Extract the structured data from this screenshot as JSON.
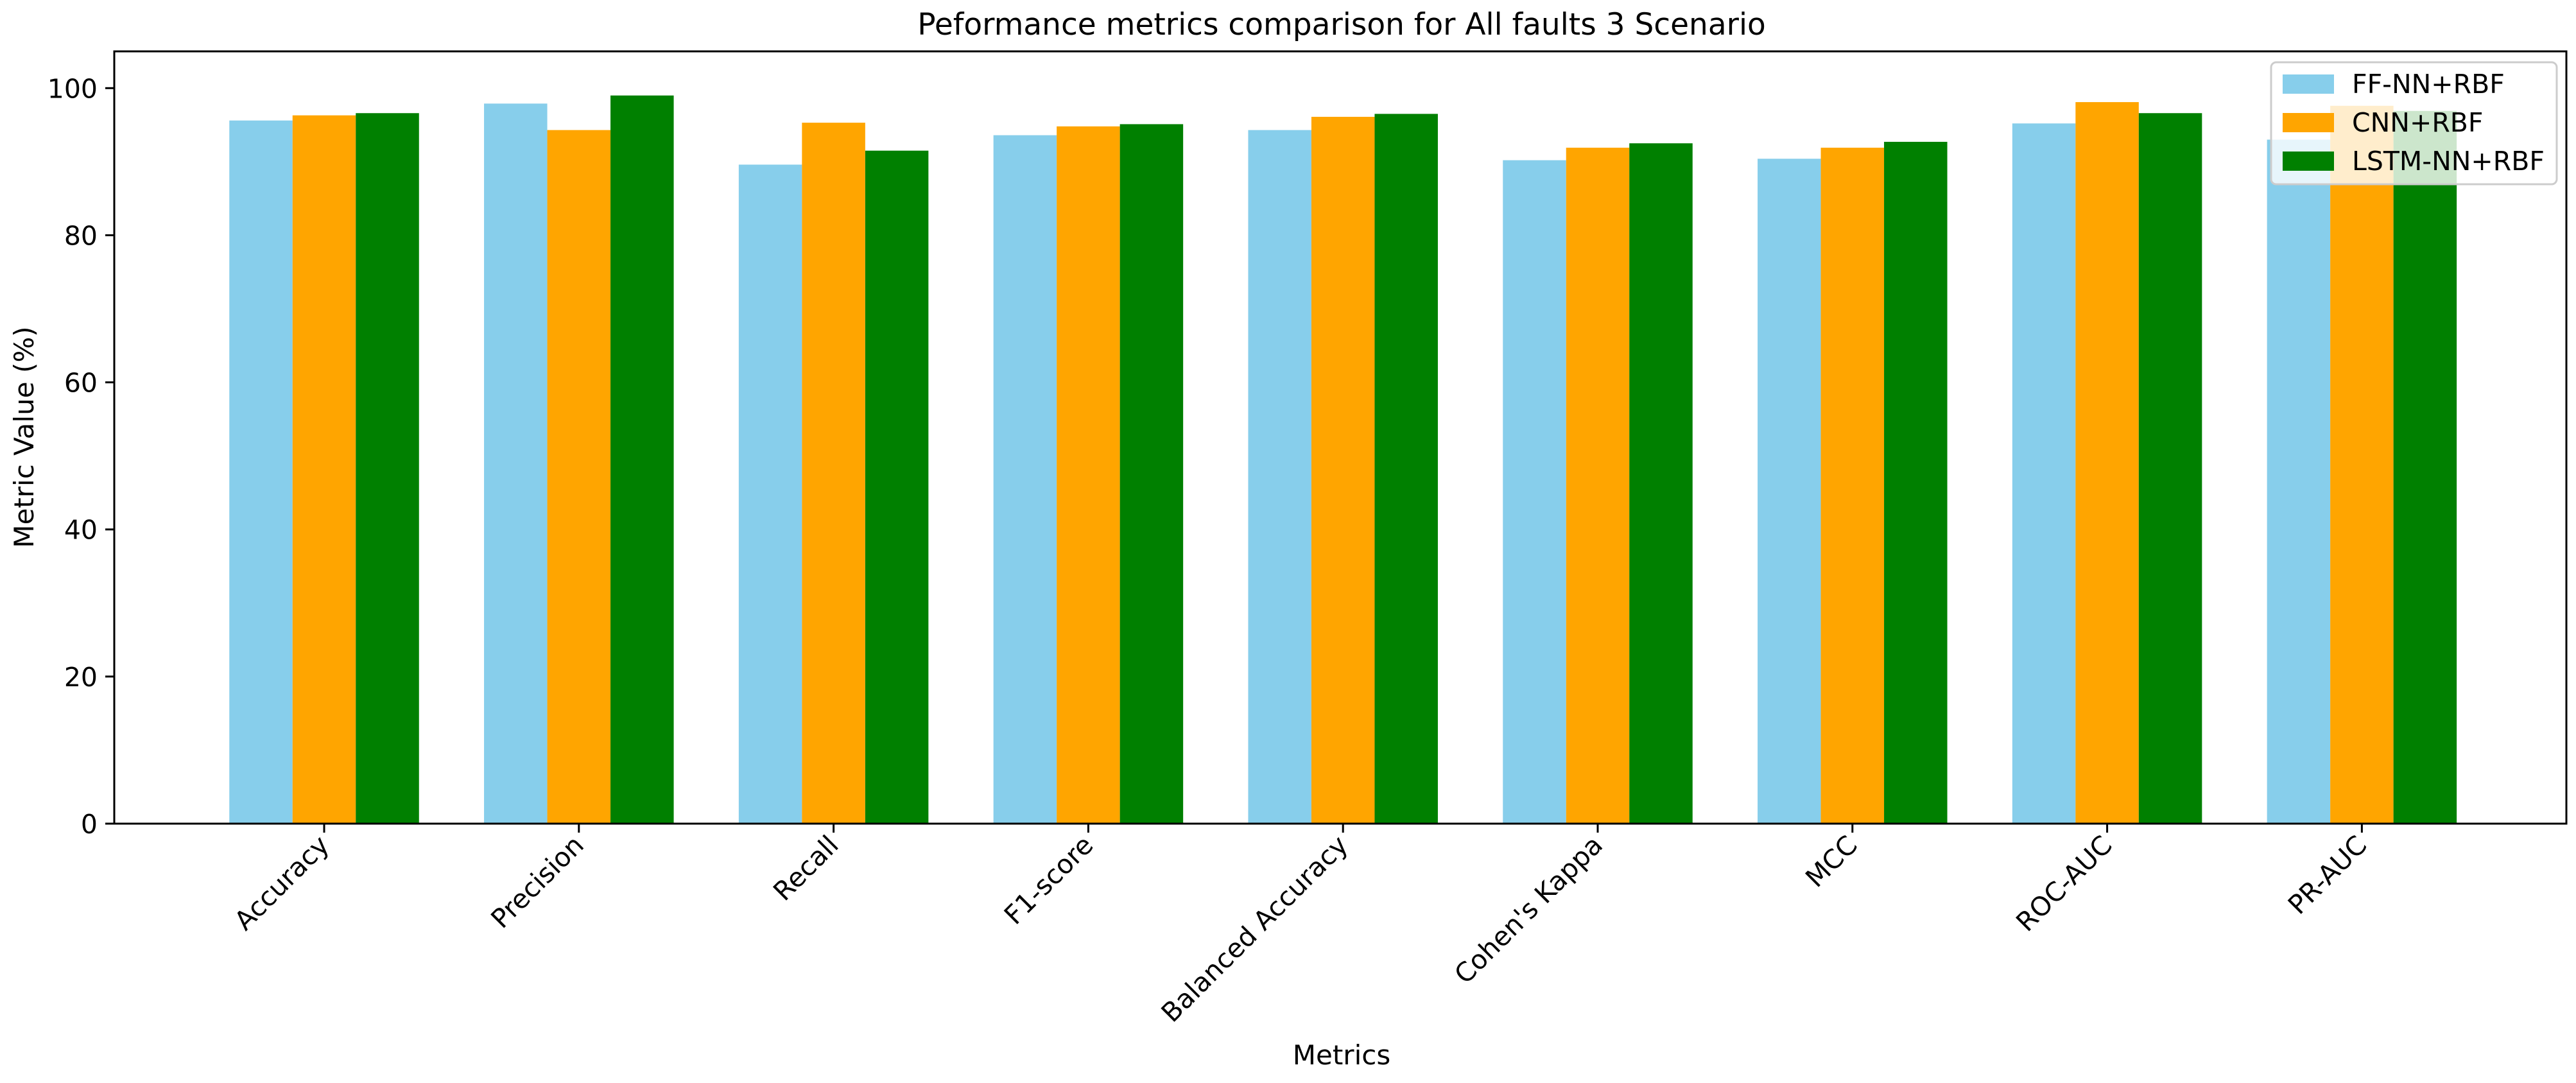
{
  "chart_data": {
    "type": "bar",
    "title": "Peformance metrics comparison for All faults 3 Scenario",
    "xlabel": "Metrics",
    "ylabel": "Metric Value (%)",
    "ylim": [
      0,
      105
    ],
    "yticks": [
      0,
      20,
      40,
      60,
      80,
      100
    ],
    "categories": [
      "Accuracy",
      "Precision",
      "Recall",
      "F1-score",
      "Balanced Accuracy",
      "Cohen's Kappa",
      "MCC",
      "ROC-AUC",
      "PR-AUC"
    ],
    "series": [
      {
        "name": "FF-NN+RBF",
        "color": "#87ceeb",
        "values": [
          95.6,
          97.9,
          89.6,
          93.6,
          94.3,
          90.2,
          90.4,
          95.2,
          93.0
        ]
      },
      {
        "name": "CNN+RBF",
        "color": "#ffa500",
        "values": [
          96.3,
          94.3,
          95.3,
          94.8,
          96.1,
          91.9,
          91.9,
          98.1,
          97.6
        ]
      },
      {
        "name": "LSTM-NN+RBF",
        "color": "#008000",
        "values": [
          96.6,
          99.0,
          91.5,
          95.1,
          96.5,
          92.5,
          92.7,
          96.6,
          96.9
        ]
      }
    ],
    "grid": false,
    "legend_position": "top-right"
  }
}
